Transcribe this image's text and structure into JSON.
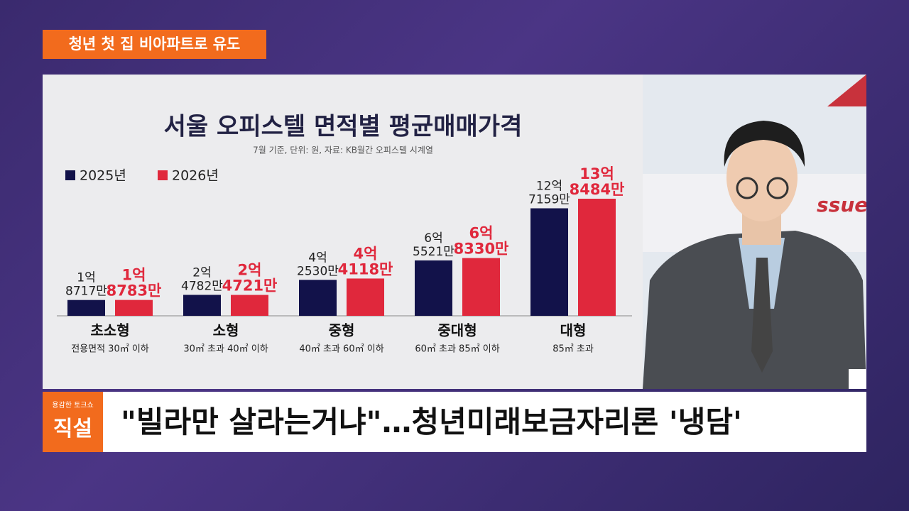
{
  "header": {
    "tag": "청년 첫 집 비아파트로 유도"
  },
  "background_text": "ssue",
  "chart_data": {
    "type": "bar",
    "title": "서울 오피스텔 면적별 평균매매가격",
    "subtitle": "7월 기준, 단위: 원, 자료: KB월간 오피스텔 시계열",
    "categories": [
      "초소형",
      "소형",
      "중형",
      "중대형",
      "대형"
    ],
    "category_notes": [
      "전용면적 30㎡ 이하",
      "30㎡ 초과 40㎡ 이하",
      "40㎡ 초과 60㎡ 이하",
      "60㎡ 초과 85㎡ 이하",
      "85㎡ 초과"
    ],
    "series": [
      {
        "name": "2025년",
        "color": "#12124a",
        "values": [
          18717,
          24782,
          42530,
          65521,
          127159
        ],
        "value_labels": [
          [
            "1억",
            "8717만"
          ],
          [
            "2억",
            "4782만"
          ],
          [
            "4억",
            "2530만"
          ],
          [
            "6억",
            "5521만"
          ],
          [
            "12억",
            "7159만"
          ]
        ]
      },
      {
        "name": "2026년",
        "color": "#e0283c",
        "values": [
          18783,
          24721,
          44118,
          68330,
          138484
        ],
        "value_labels": [
          [
            "1억",
            "8783만"
          ],
          [
            "2억",
            "4721만"
          ],
          [
            "4억",
            "4118만"
          ],
          [
            "6억",
            "8330만"
          ],
          [
            "13억",
            "8484만"
          ]
        ]
      }
    ]
  },
  "lower_third": {
    "show_name": "용감한 토크쇼",
    "logo": "직설",
    "headline": "\"빌라만 살라는거냐\"…청년미래보금자리론 '냉담'"
  }
}
